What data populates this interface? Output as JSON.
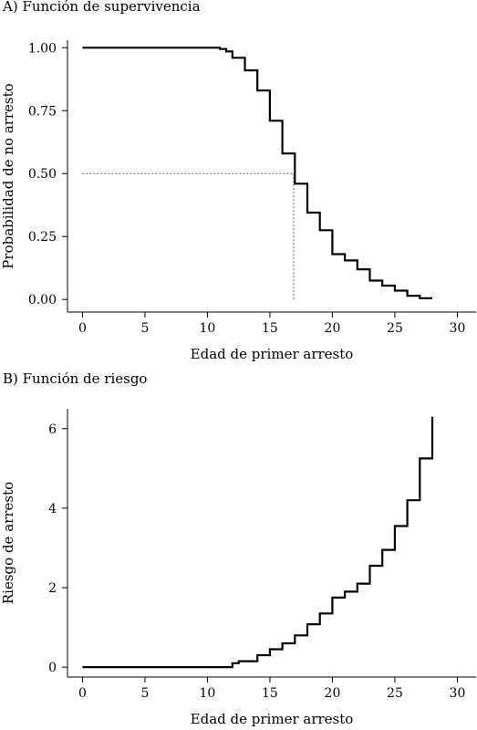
{
  "chart_data": [
    {
      "type": "line",
      "title": "A) Función de supervivencia",
      "xlabel": "Edad de primer arresto",
      "ylabel": "Probabilidad de no arresto",
      "xlim": [
        -1.2,
        31.5
      ],
      "ylim": [
        -0.05,
        1.03
      ],
      "xticks": [
        0,
        5,
        10,
        15,
        20,
        25,
        30
      ],
      "xtick_labels": [
        "0",
        "5",
        "10",
        "15",
        "20",
        "25",
        "30"
      ],
      "yticks": [
        0,
        0.25,
        0.5,
        0.75,
        1.0
      ],
      "ytick_labels": [
        "0.00",
        "0.25",
        "0.50",
        "0.75",
        "1.00"
      ],
      "grid": false,
      "series": [
        {
          "step": "post",
          "x": [
            0,
            11,
            11.5,
            12,
            13,
            14,
            15,
            16,
            17,
            18,
            19,
            20,
            21,
            22,
            23,
            24,
            25,
            26,
            27,
            28
          ],
          "y": [
            1.0,
            0.995,
            0.985,
            0.96,
            0.91,
            0.83,
            0.71,
            0.58,
            0.46,
            0.345,
            0.275,
            0.18,
            0.155,
            0.12,
            0.075,
            0.055,
            0.035,
            0.015,
            0.005,
            0.005
          ]
        }
      ],
      "reference_lines": [
        {
          "style": "dotted",
          "from": [
            0,
            0.5
          ],
          "to": [
            16.9,
            0.5
          ]
        },
        {
          "style": "dotted",
          "from": [
            16.9,
            0.5
          ],
          "to": [
            16.9,
            0.0
          ]
        }
      ]
    },
    {
      "type": "line",
      "title": "B) Función de riesgo",
      "xlabel": "Edad de primer arresto",
      "ylabel": "Riesgo de arresto",
      "xlim": [
        -1.2,
        31.5
      ],
      "ylim": [
        -0.25,
        6.5
      ],
      "xticks": [
        0,
        5,
        10,
        15,
        20,
        25,
        30
      ],
      "xtick_labels": [
        "0",
        "5",
        "10",
        "15",
        "20",
        "25",
        "30"
      ],
      "yticks": [
        0,
        2,
        4,
        6
      ],
      "ytick_labels": [
        "0",
        "2",
        "4",
        "6"
      ],
      "grid": false,
      "series": [
        {
          "step": "post",
          "x": [
            0,
            12,
            12.5,
            14,
            15,
            16,
            17,
            18,
            19,
            20,
            21,
            22,
            23,
            24,
            25,
            26,
            27,
            28
          ],
          "y": [
            0,
            0.1,
            0.15,
            0.3,
            0.45,
            0.6,
            0.8,
            1.08,
            1.35,
            1.75,
            1.9,
            2.1,
            2.55,
            2.95,
            3.55,
            4.2,
            5.25,
            6.3
          ]
        }
      ]
    }
  ]
}
